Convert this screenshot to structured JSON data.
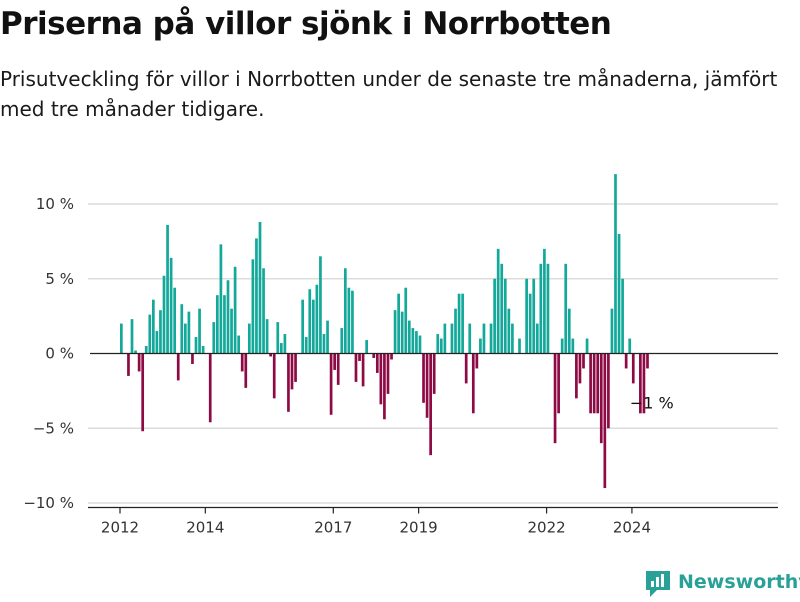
{
  "title": "Priserna på villor sjönk i Norrbotten",
  "subtitle": "Prisutveckling för villor i Norrbotten under de senaste tre månaderna, jämfört med tre månader tidigare.",
  "brand": {
    "name": "Newsworthy"
  },
  "colors": {
    "positive": "#14a89a",
    "negative": "#8e0a45",
    "grid": "#dcdcdc",
    "axis": "#222222",
    "tick_text": "#333333"
  },
  "chart_data": {
    "type": "bar",
    "title": "Priserna på villor sjönk i Norrbotten",
    "xlabel": "",
    "ylabel": "",
    "ylim": [
      -10,
      12
    ],
    "y_ticks": [
      10,
      5,
      0,
      -5,
      -10
    ],
    "y_tick_labels": [
      "10 %",
      "5 %",
      "0 %",
      "−5 %",
      "−10 %"
    ],
    "x_ticks": [
      2012,
      2014,
      2017,
      2019,
      2022,
      2024
    ],
    "x_tick_labels": [
      "2012",
      "2014",
      "2017",
      "2019",
      "2022",
      "2024"
    ],
    "start": {
      "year": 2012,
      "month": 1
    },
    "frequency": "monthly",
    "annotation": {
      "text": "−1 %",
      "value": -1,
      "position": "last bar"
    },
    "values": [
      2.0,
      0,
      -1.5,
      2.3,
      0.2,
      -1.2,
      -5.2,
      0.5,
      2.6,
      3.6,
      1.5,
      2.9,
      5.2,
      8.6,
      6.4,
      4.4,
      -1.8,
      3.3,
      2.0,
      2.8,
      -0.7,
      1.1,
      3.0,
      0.5,
      0,
      -4.6,
      2.1,
      3.9,
      7.3,
      3.9,
      4.9,
      3.0,
      5.8,
      1.2,
      -1.2,
      -2.3,
      2.0,
      6.3,
      7.7,
      8.8,
      5.7,
      2.3,
      -0.2,
      -3.0,
      2.1,
      0.7,
      1.3,
      -3.9,
      -2.4,
      -1.9,
      0,
      3.6,
      1.1,
      4.3,
      3.6,
      4.6,
      6.5,
      1.3,
      2.2,
      -4.1,
      -1.1,
      -2.1,
      1.7,
      5.7,
      4.4,
      4.2,
      -1.9,
      -0.5,
      -2.2,
      0.9,
      0,
      -0.3,
      -1.3,
      -3.4,
      -4.4,
      -2.7,
      -0.4,
      2.9,
      4.0,
      2.8,
      4.4,
      2.2,
      1.7,
      1.5,
      1.2,
      -3.3,
      -4.3,
      -6.8,
      -2.7,
      1.3,
      1.0,
      2.0,
      0,
      2.0,
      3.0,
      4.0,
      4.0,
      -2.0,
      2.0,
      -4.0,
      -1.0,
      1.0,
      2.0,
      0,
      2.0,
      5.0,
      7.0,
      6.0,
      5.0,
      3.0,
      2.0,
      0,
      1.0,
      0,
      5.0,
      4.0,
      5.0,
      2.0,
      6.0,
      7.0,
      6.0,
      0,
      -6.0,
      -4.0,
      1.0,
      6.0,
      3.0,
      1.0,
      -3.0,
      -2.0,
      -1.0,
      1.0,
      -4.0,
      -4.0,
      -4.0,
      -6.0,
      -9.0,
      -5.0,
      3.0,
      12.0,
      8.0,
      5.0,
      -1.0,
      1.0,
      -2.0,
      0,
      -4.0,
      -4.0,
      -1.0
    ]
  }
}
